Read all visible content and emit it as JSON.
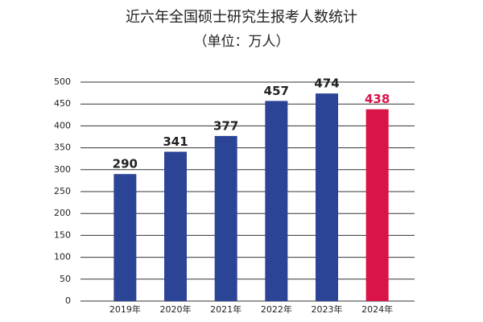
{
  "chart_data": {
    "type": "bar",
    "title": "近六年全国硕士研究生报考人数统计",
    "subtitle": "（单位：万人）",
    "categories": [
      "2019年",
      "2020年",
      "2021年",
      "2022年",
      "2023年",
      "2024年"
    ],
    "values": [
      290,
      341,
      377,
      457,
      474,
      438
    ],
    "colors": [
      "#2c4496",
      "#2c4496",
      "#2c4496",
      "#2c4496",
      "#2c4496",
      "#d81448"
    ],
    "ylim": [
      0,
      500
    ],
    "yticks": [
      0,
      50,
      100,
      150,
      200,
      250,
      300,
      350,
      400,
      450,
      500
    ],
    "grid": true
  }
}
